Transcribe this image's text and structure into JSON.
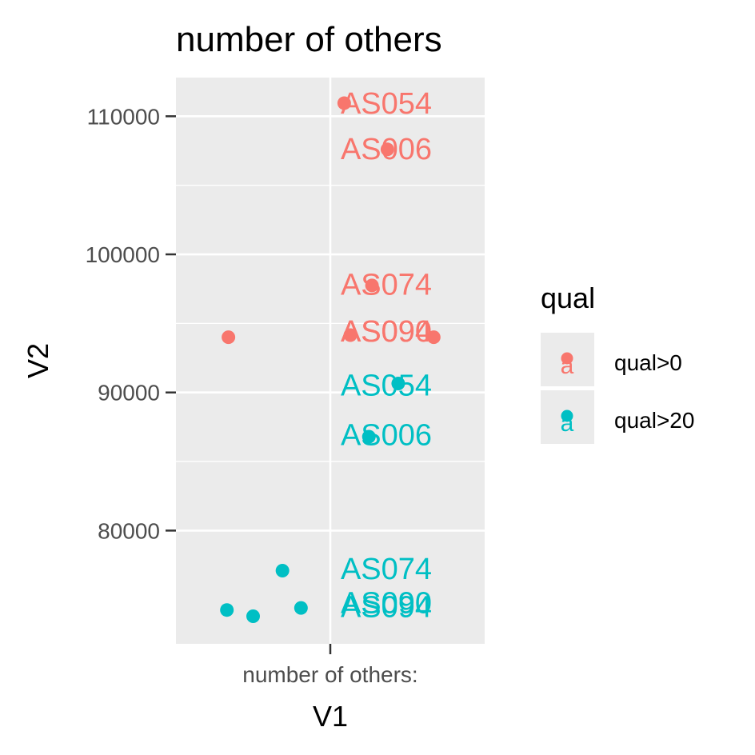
{
  "chart_data": {
    "type": "scatter",
    "title": "number of others",
    "xlabel": "V1",
    "ylabel": "V2",
    "x_tick_labels": [
      "number of others:"
    ],
    "y_ticks": [
      80000,
      90000,
      100000,
      110000
    ],
    "y_tick_labels": [
      "80000",
      "90000",
      "100000",
      "110000"
    ],
    "ylim": [
      71800,
      112800
    ],
    "xlim": [
      -1,
      1
    ],
    "grid": true,
    "legend": {
      "title": "qual",
      "placement": "right",
      "entries": [
        {
          "label": "qual>0",
          "color": "#F8766D"
        },
        {
          "label": "qual>20",
          "color": "#00BFC4"
        }
      ]
    },
    "series": [
      {
        "name": "qual>0",
        "color": "#F8766D",
        "points": [
          {
            "x": -0.66,
            "y": 94000
          },
          {
            "x": 0.09,
            "y": 110950
          },
          {
            "x": 0.37,
            "y": 107600
          },
          {
            "x": 0.27,
            "y": 97750
          },
          {
            "x": 0.13,
            "y": 94150
          },
          {
            "x": 0.67,
            "y": 94000
          }
        ]
      },
      {
        "name": "qual>20",
        "color": "#00BFC4",
        "points": [
          {
            "x": 0.44,
            "y": 90650
          },
          {
            "x": 0.25,
            "y": 86800
          },
          {
            "x": -0.31,
            "y": 77100
          },
          {
            "x": -0.67,
            "y": 74250
          },
          {
            "x": -0.5,
            "y": 73800
          },
          {
            "x": -0.19,
            "y": 74400
          }
        ]
      }
    ],
    "annotations": [
      {
        "text": "AS054",
        "y": 111000,
        "color": "#F8766D"
      },
      {
        "text": "AS006",
        "y": 107700,
        "color": "#F8766D"
      },
      {
        "text": "AS074",
        "y": 97900,
        "color": "#F8766D"
      },
      {
        "text": "AS090",
        "y": 94500,
        "color": "#F8766D"
      },
      {
        "text": "AS094",
        "y": 94500,
        "color": "#F8766D"
      },
      {
        "text": "AS054",
        "y": 90600,
        "color": "#00BFC4"
      },
      {
        "text": "AS006",
        "y": 87000,
        "color": "#00BFC4"
      },
      {
        "text": "AS074",
        "y": 77300,
        "color": "#00BFC4"
      },
      {
        "text": "AS090",
        "y": 74850,
        "color": "#00BFC4"
      },
      {
        "text": "AS094",
        "y": 74550,
        "color": "#00BFC4"
      }
    ]
  }
}
